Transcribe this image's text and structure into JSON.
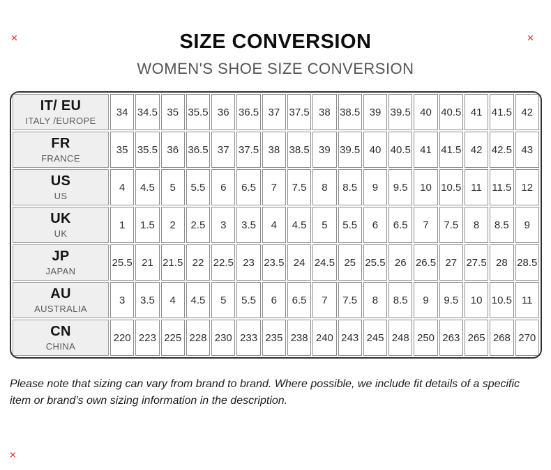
{
  "marks": {
    "glyph": "✕"
  },
  "header": {
    "title": "SIZE CONVERSION",
    "subtitle": "WOMEN'S SHOE SIZE CONVERSION"
  },
  "table": {
    "rows": [
      {
        "code": "IT/ EU",
        "region": "ITALY /EUROPE",
        "values": [
          "34",
          "34.5",
          "35",
          "35.5",
          "36",
          "36.5",
          "37",
          "37.5",
          "38",
          "38.5",
          "39",
          "39.5",
          "40",
          "40.5",
          "41",
          "41.5",
          "42"
        ]
      },
      {
        "code": "FR",
        "region": "FRANCE",
        "values": [
          "35",
          "35.5",
          "36",
          "36.5",
          "37",
          "37.5",
          "38",
          "38.5",
          "39",
          "39.5",
          "40",
          "40.5",
          "41",
          "41.5",
          "42",
          "42.5",
          "43"
        ]
      },
      {
        "code": "US",
        "region": "US",
        "values": [
          "4",
          "4.5",
          "5",
          "5.5",
          "6",
          "6.5",
          "7",
          "7.5",
          "8",
          "8.5",
          "9",
          "9.5",
          "10",
          "10.5",
          "11",
          "11.5",
          "12"
        ]
      },
      {
        "code": "UK",
        "region": "UK",
        "values": [
          "1",
          "1.5",
          "2",
          "2.5",
          "3",
          "3.5",
          "4",
          "4.5",
          "5",
          "5.5",
          "6",
          "6.5",
          "7",
          "7.5",
          "8",
          "8.5",
          "9"
        ]
      },
      {
        "code": "JP",
        "region": "JAPAN",
        "values": [
          "25.5",
          "21",
          "21.5",
          "22",
          "22.5",
          "23",
          "23.5",
          "24",
          "24.5",
          "25",
          "25.5",
          "26",
          "26.5",
          "27",
          "27.5",
          "28",
          "28.5"
        ]
      },
      {
        "code": "AU",
        "region": "AUSTRALIA",
        "values": [
          "3",
          "3.5",
          "4",
          "4.5",
          "5",
          "5.5",
          "6",
          "6.5",
          "7",
          "7.5",
          "8",
          "8.5",
          "9",
          "9.5",
          "10",
          "10.5",
          "11"
        ]
      },
      {
        "code": "CN",
        "region": "CHINA",
        "values": [
          "220",
          "223",
          "225",
          "228",
          "230",
          "233",
          "235",
          "238",
          "240",
          "243",
          "245",
          "248",
          "250",
          "263",
          "265",
          "268",
          "270"
        ]
      }
    ]
  },
  "note": {
    "lines": [
      "Please note that sizing can vary from brand to brand. Where possible, we include fit details of a specific",
      "item or brand’s own sizing information in the description."
    ]
  },
  "colors": {
    "corner_mark": "#e8352c",
    "header_cell_bg": "#efefef",
    "grid_line": "#8c8c8c",
    "outer_border": "#303030",
    "subtitle_text": "#545454"
  }
}
